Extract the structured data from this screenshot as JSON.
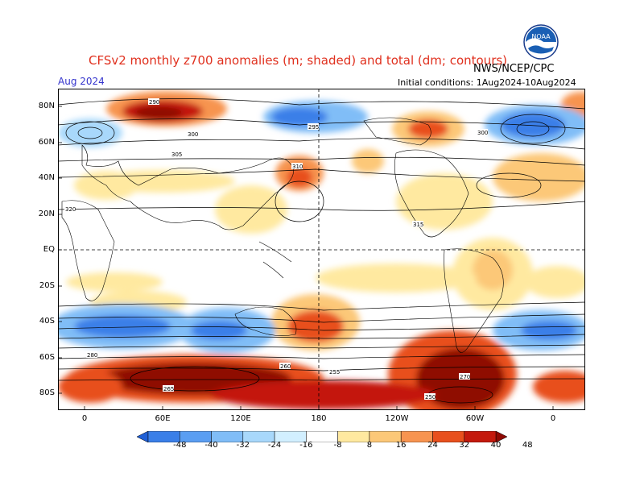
{
  "header": {
    "title": "CFSv2 monthly z700 anomalies (m; shaded) and total (dm; contours)",
    "agency": "NWS/NCEP/CPC",
    "valid_month": "Aug 2024",
    "initial_conditions": "Initial conditions: 1Aug2024-10Aug2024"
  },
  "logo": {
    "text": "NOAA",
    "icon": "noaa-logo-icon"
  },
  "axes": {
    "lat_labels": [
      "80N",
      "60N",
      "40N",
      "20N",
      "EQ",
      "20S",
      "40S",
      "60S",
      "80S"
    ],
    "lon_labels": [
      "0",
      "60E",
      "120E",
      "180",
      "120W",
      "60W",
      "0"
    ]
  },
  "colorbar": {
    "labels": [
      "-48",
      "-40",
      "-32",
      "-24",
      "-16",
      "-8",
      "8",
      "16",
      "24",
      "32",
      "40",
      "48"
    ],
    "colors": [
      "#1f5fd6",
      "#3a7fe8",
      "#5a9ef2",
      "#80bdf7",
      "#a8d8fb",
      "#d2efff",
      "#ffffff",
      "#ffe9a0",
      "#fcc878",
      "#f79450",
      "#e8501d",
      "#c4190d",
      "#8f0a04"
    ]
  },
  "contour_labels": [
    "290",
    "295",
    "300",
    "300",
    "305",
    "310",
    "315",
    "320",
    "280",
    "270",
    "265",
    "260",
    "255",
    "250"
  ],
  "colors": {
    "title": "#e0301e",
    "date": "#3333cc"
  }
}
